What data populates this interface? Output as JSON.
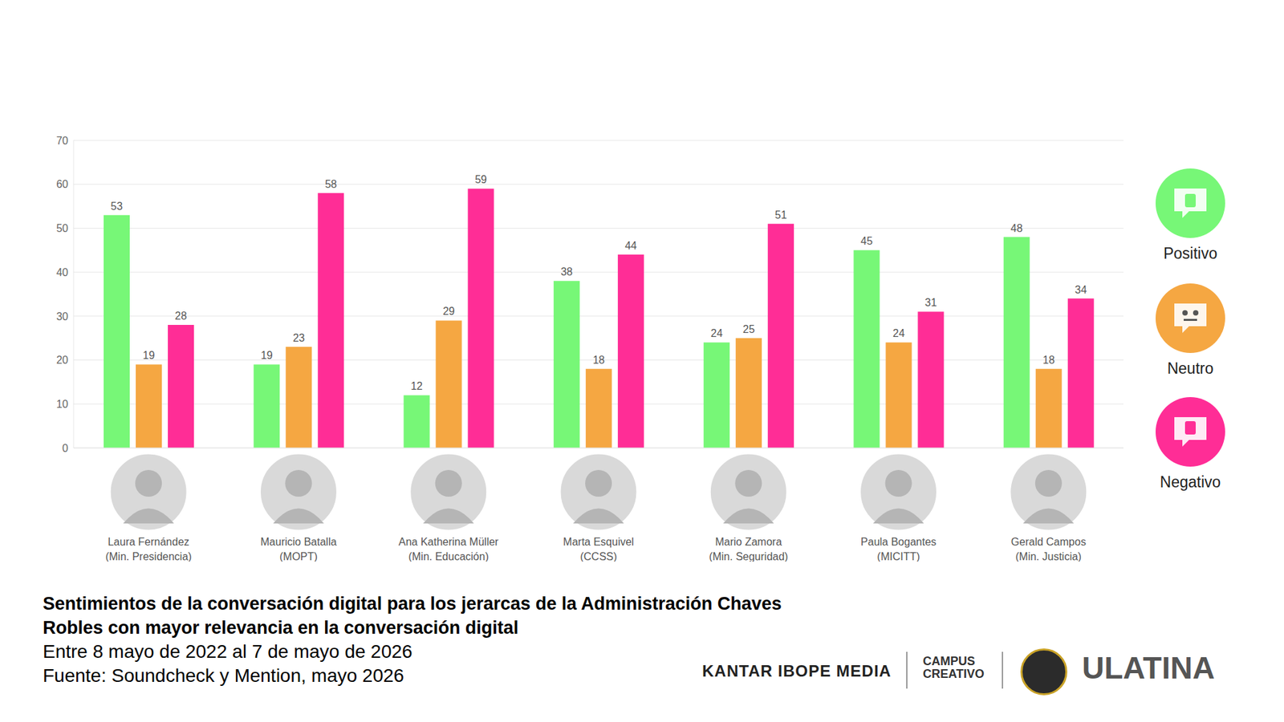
{
  "chart_data": {
    "type": "bar",
    "title": "Sentimientos de la conversación digital para los jerarcas de la Administración Chaves Robles con mayor relevancia en la conversación digital",
    "subtitle": "Entre 8 mayo de 2022 al 7 de mayo de 2026",
    "annotations": [
      "Fuente: Soundcheck y Mention, mayo 2026",
      "KANTAR IBOPE MEDIA",
      "CAMPUS CREATIVO",
      "ULATINA"
    ],
    "categories": [
      "Laura Fernández (Min. Presidencia)",
      "Mauricio Batalla (MOPT)",
      "Ana Katherina Müller (Min. Educación)",
      "Marta Esquivel (CCSS)",
      "Mario Zamora (Min. Seguridad)",
      "Paula Bogantes (MICITT)",
      "Gerald Campos (Min. Justicia)"
    ],
    "series": [
      {
        "name": "Positivo",
        "color": "#77f777",
        "values": [
          53,
          19,
          12,
          38,
          24,
          45,
          48
        ]
      },
      {
        "name": "Neutro",
        "color": "#f5a742",
        "values": [
          19,
          23,
          29,
          18,
          25,
          24,
          18
        ]
      },
      {
        "name": "Negativo",
        "color": "#ff2d96",
        "values": [
          28,
          58,
          59,
          44,
          51,
          31,
          34
        ]
      }
    ],
    "ylim": [
      0,
      70
    ],
    "yticks": [
      0,
      10,
      20,
      30,
      40,
      50,
      60,
      70
    ],
    "grid": true,
    "data_labels": true,
    "legend": "right"
  }
}
